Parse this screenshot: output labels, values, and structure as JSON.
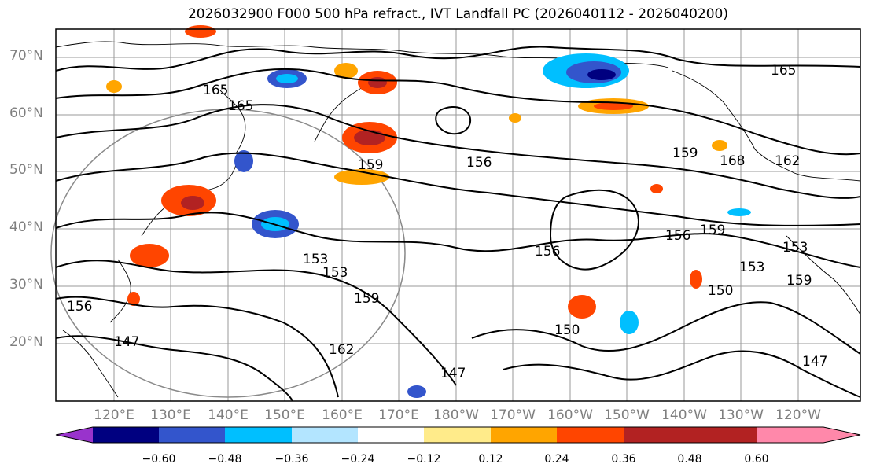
{
  "title": "2026032900 F000 500 hPa refract., IVT Landfall PC (2026040112 - 2026040200)",
  "lat_labels": [
    "70°N",
    "60°N",
    "50°N",
    "40°N",
    "30°N",
    "20°N"
  ],
  "lon_labels": [
    "120°E",
    "130°E",
    "140°E",
    "150°E",
    "160°E",
    "170°E",
    "180°W",
    "170°W",
    "160°W",
    "150°W",
    "140°W",
    "130°W",
    "120°W"
  ],
  "contour_labels": [
    "165",
    "165",
    "165",
    "159",
    "156",
    "156",
    "159",
    "153",
    "153",
    "159",
    "153",
    "150",
    "156",
    "159",
    "153",
    "150",
    "147",
    "147",
    "147",
    "162",
    "162",
    "168",
    "159",
    "156"
  ],
  "colorbar": {
    "ticks": [
      "−0.60",
      "−0.48",
      "−0.36",
      "−0.24",
      "−0.12",
      "0.12",
      "0.24",
      "0.36",
      "0.48",
      "0.60"
    ],
    "colors": [
      "#9933cc",
      "#000080",
      "#3355cc",
      "#00bfff",
      "#b3e5ff",
      "#ffffff",
      "#ffeb8a",
      "#ffa500",
      "#ff4500",
      "#b22222",
      "#ff88aa"
    ]
  }
}
